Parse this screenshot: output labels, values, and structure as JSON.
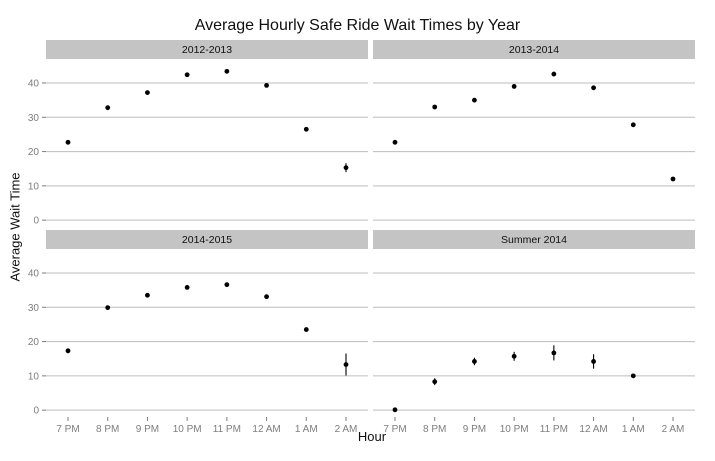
{
  "chart_data": {
    "type": "scatter",
    "title": "Average Hourly Safe Ride Wait Times by Year",
    "xlabel": "Hour",
    "ylabel": "Average Wait Time",
    "categories": [
      "7 PM",
      "8 PM",
      "9 PM",
      "10 PM",
      "11 PM",
      "12 AM",
      "1 AM",
      "2 AM"
    ],
    "yticks": [
      0,
      10,
      20,
      30,
      40
    ],
    "ylim": [
      -2,
      47
    ],
    "grid": true,
    "legend": "none",
    "panels": [
      {
        "name": "2012-2013",
        "values": [
          22.7,
          32.8,
          37.2,
          42.4,
          43.4,
          39.3,
          26.5,
          15.3
        ],
        "errors": [
          0.4,
          0.4,
          0.4,
          0.5,
          0.5,
          0.4,
          0.4,
          1.3
        ]
      },
      {
        "name": "2013-2014",
        "values": [
          22.7,
          33.0,
          35.0,
          39.0,
          42.6,
          38.6,
          27.8,
          12.0
        ],
        "errors": [
          0.4,
          0.4,
          0.6,
          0.6,
          0.6,
          0.5,
          0.4,
          0.2
        ]
      },
      {
        "name": "2014-2015",
        "values": [
          17.3,
          29.9,
          33.5,
          35.8,
          36.6,
          33.1,
          23.5,
          13.3
        ],
        "errors": [
          0.7,
          0.3,
          0.4,
          0.4,
          0.5,
          0.4,
          0.5,
          3.2
        ]
      },
      {
        "name": "Summer 2014",
        "values": [
          0.1,
          8.3,
          14.2,
          15.7,
          16.7,
          14.2,
          10.0,
          null
        ],
        "errors": [
          0.2,
          1.0,
          1.1,
          1.3,
          2.2,
          2.1,
          0.2,
          null
        ]
      }
    ]
  },
  "style": {
    "grid_color": "#bdbdbd",
    "strip_color": "#c4c4c4",
    "point_color": "#000000",
    "text_color": "#111111",
    "tick_color": "#7d7d7d"
  }
}
